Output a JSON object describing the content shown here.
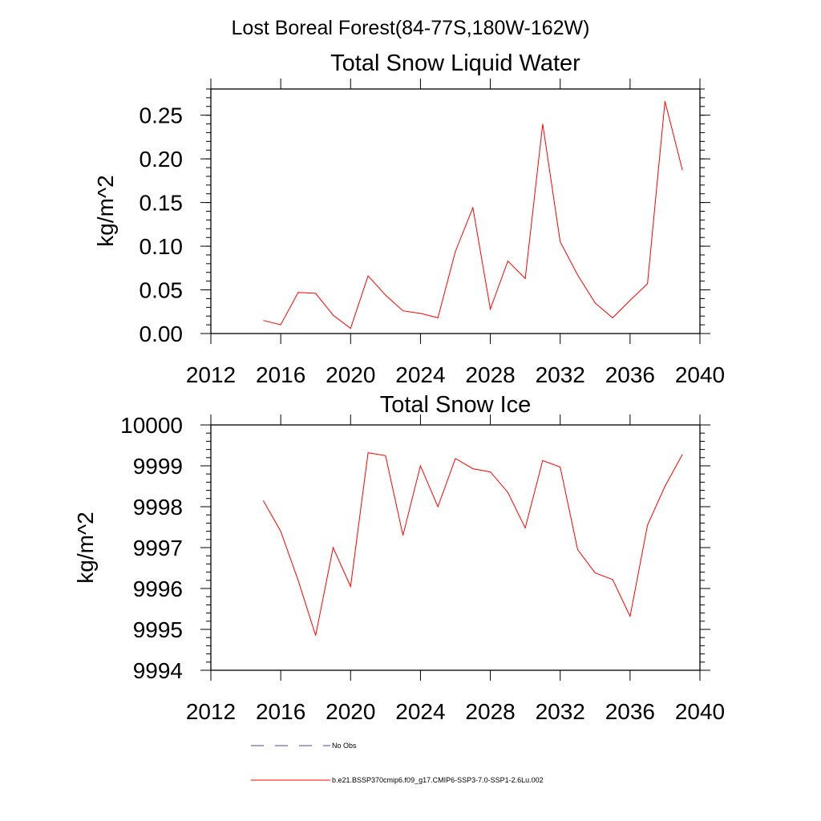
{
  "suptitle": "Lost Boreal Forest(84-77S,180W-162W)",
  "colors": {
    "series": "#ff0000",
    "noobs": "#4a4aa8",
    "axis": "#000000"
  },
  "legend": [
    {
      "label": "No Obs",
      "style": "dashed",
      "color": "#4a4aa8"
    },
    {
      "label": "b.e21.BSSP370cmip6.f09_g17.CMIP6-SSP3-7.0-SSP1-2.6Lu.002",
      "style": "solid",
      "color": "#ff0000"
    }
  ],
  "chart_data": [
    {
      "type": "line",
      "title": "Total Snow Liquid Water",
      "xlabel": "",
      "ylabel": "kg/m^2",
      "xlim": [
        2012,
        2040
      ],
      "ylim": [
        0.0,
        0.28
      ],
      "xticks": [
        2012,
        2016,
        2020,
        2024,
        2028,
        2032,
        2036,
        2040
      ],
      "yticks": [
        0.0,
        0.05,
        0.1,
        0.15,
        0.2,
        0.25
      ],
      "ytick_labels": [
        "0.00",
        "0.05",
        "0.10",
        "0.15",
        "0.20",
        "0.25"
      ],
      "grid": false,
      "x": [
        2015,
        2016,
        2017,
        2018,
        2019,
        2020,
        2021,
        2022,
        2023,
        2024,
        2025,
        2026,
        2027,
        2028,
        2029,
        2030,
        2031,
        2032,
        2033,
        2034,
        2035,
        2036,
        2037,
        2038,
        2039
      ],
      "series": [
        {
          "name": "b.e21.BSSP370cmip6.f09_g17.CMIP6-SSP3-7.0-SSP1-2.6Lu.002",
          "values": [
            0.015,
            0.01,
            0.047,
            0.046,
            0.021,
            0.006,
            0.066,
            0.044,
            0.026,
            0.023,
            0.018,
            0.094,
            0.144,
            0.028,
            0.083,
            0.063,
            0.24,
            0.105,
            0.067,
            0.035,
            0.018,
            0.038,
            0.057,
            0.266,
            0.187
          ]
        }
      ]
    },
    {
      "type": "line",
      "title": "Total Snow Ice",
      "xlabel": "",
      "ylabel": "kg/m^2",
      "xlim": [
        2012,
        2040
      ],
      "ylim": [
        9994,
        10000
      ],
      "xticks": [
        2012,
        2016,
        2020,
        2024,
        2028,
        2032,
        2036,
        2040
      ],
      "yticks": [
        9994,
        9995,
        9996,
        9997,
        9998,
        9999,
        10000
      ],
      "ytick_labels": [
        "9994",
        "9995",
        "9996",
        "9997",
        "9998",
        "9999",
        "10000"
      ],
      "grid": false,
      "x": [
        2015,
        2016,
        2017,
        2018,
        2019,
        2020,
        2021,
        2022,
        2023,
        2024,
        2025,
        2026,
        2027,
        2028,
        2029,
        2030,
        2031,
        2032,
        2033,
        2034,
        2035,
        2036,
        2037,
        2038,
        2039
      ],
      "series": [
        {
          "name": "b.e21.BSSP370cmip6.f09_g17.CMIP6-SSP3-7.0-SSP1-2.6Lu.002",
          "values": [
            9998.15,
            9997.4,
            9996.2,
            9994.85,
            9997.0,
            9996.05,
            9999.32,
            9999.25,
            9997.3,
            9999.0,
            9998.0,
            9999.18,
            9998.93,
            9998.85,
            9998.35,
            9997.48,
            9999.13,
            9998.97,
            9996.95,
            9996.38,
            9996.22,
            9995.32,
            9997.55,
            9998.5,
            9999.28
          ]
        }
      ]
    }
  ]
}
